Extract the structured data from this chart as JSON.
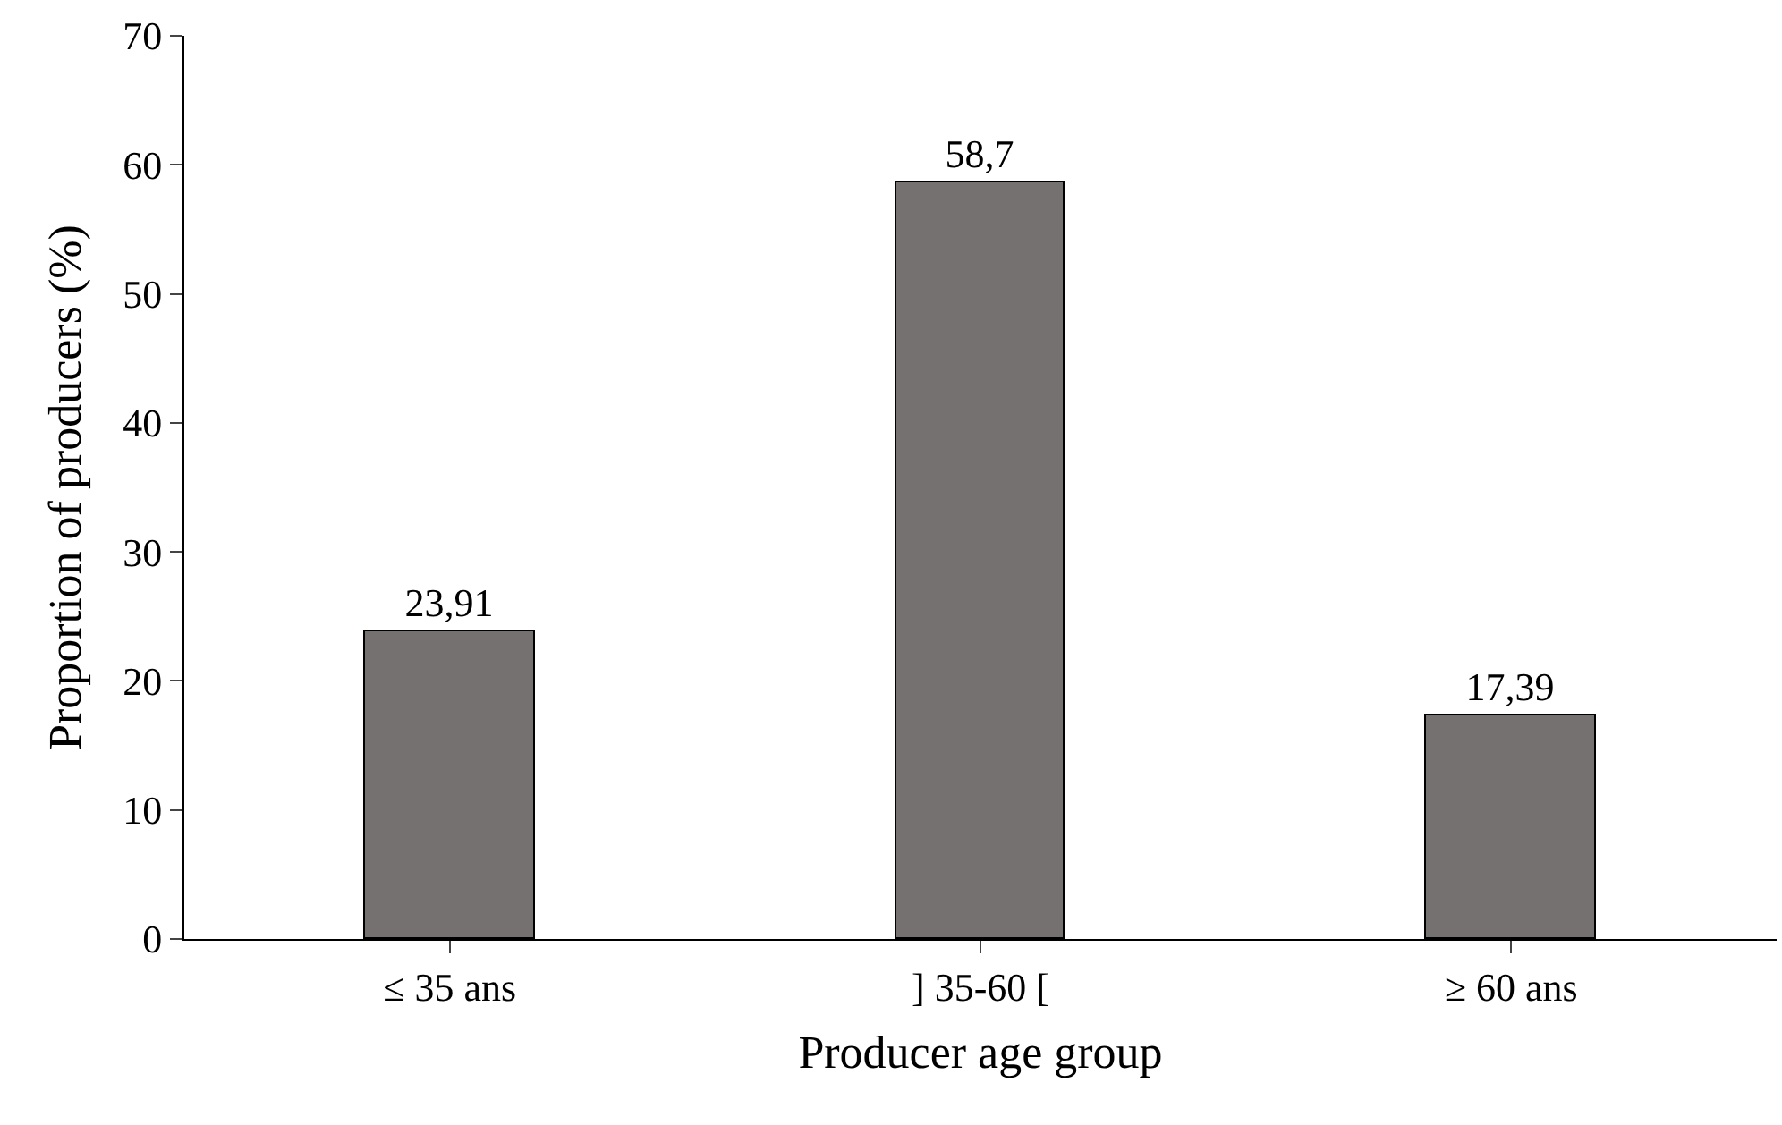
{
  "chart_data": {
    "type": "bar",
    "xlabel": "Producer age group",
    "ylabel": "Proportion of producers (%)",
    "categories": [
      "≤ 35 ans",
      "] 35-60 [",
      "≥ 60 ans"
    ],
    "values": [
      23.91,
      58.7,
      17.39
    ],
    "color": "#767171",
    "value_labels": [
      "23,91",
      "58,7",
      "17,39"
    ],
    "ylim": [
      0,
      70
    ],
    "yticks": [
      0,
      10,
      20,
      30,
      40,
      50,
      60,
      70
    ],
    "grid": false,
    "legend": false
  }
}
